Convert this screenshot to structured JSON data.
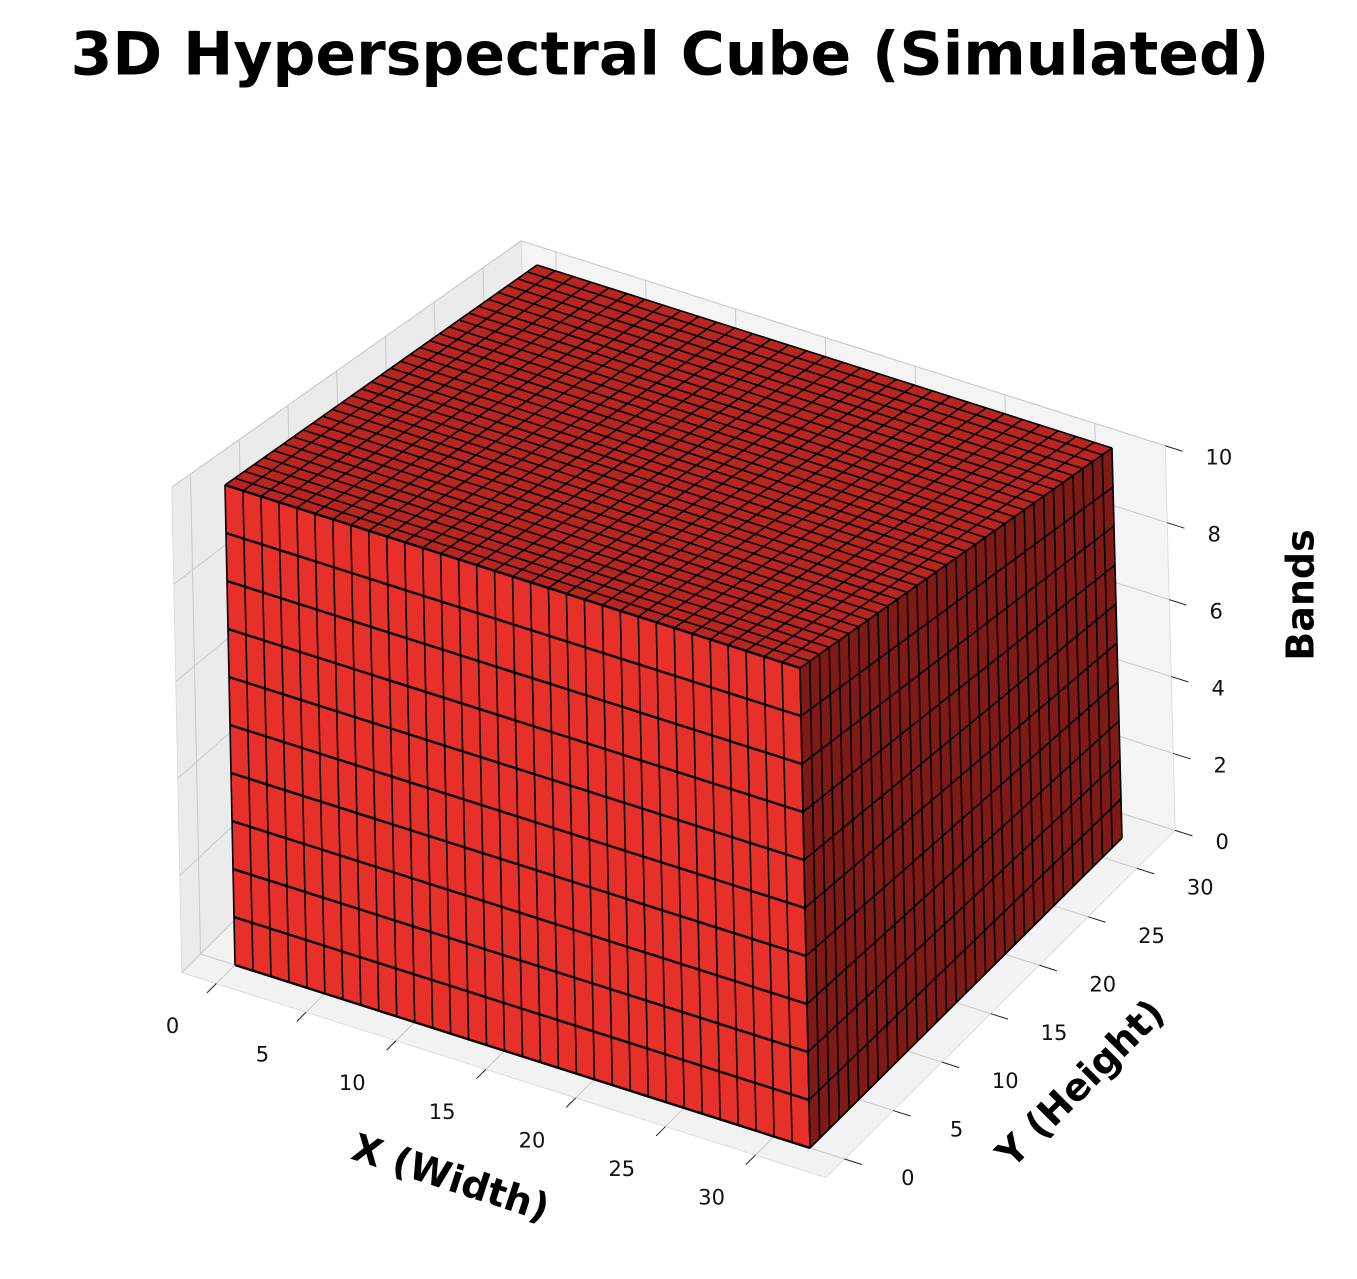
{
  "chart_data": {
    "type": "voxel",
    "title": "3D Hyperspectral Cube (Simulated)",
    "xlabel": "X (Width)",
    "ylabel": "Y (Height)",
    "zlabel": "Bands",
    "shape": [
      32,
      32,
      10
    ],
    "color": "#e8302a",
    "edgecolor": "#000000",
    "xlim": [
      0,
      32
    ],
    "ylim": [
      0,
      32
    ],
    "zlim": [
      0,
      10
    ],
    "xticks": [
      0,
      5,
      10,
      15,
      20,
      25,
      30
    ],
    "yticks": [
      0,
      5,
      10,
      15,
      20,
      25,
      30
    ],
    "zticks": [
      0,
      2,
      4,
      6,
      8,
      10
    ],
    "grid": true
  }
}
